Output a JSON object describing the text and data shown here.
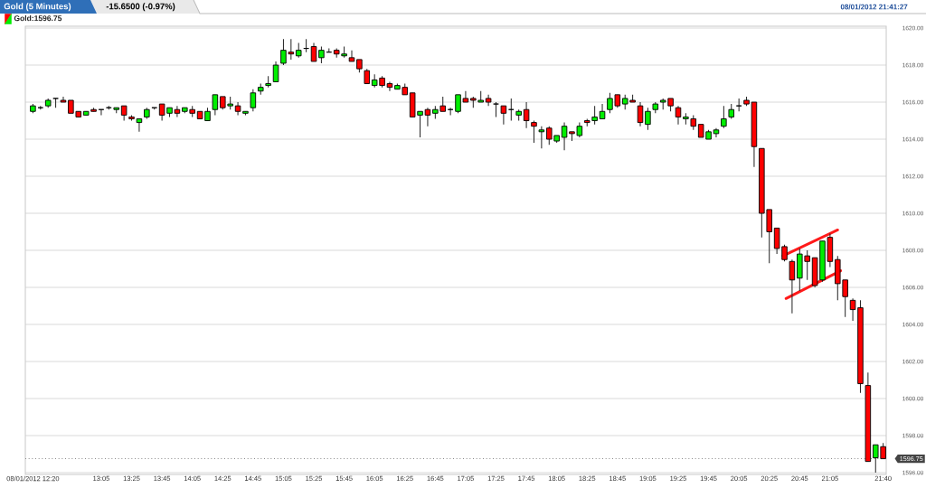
{
  "chart_data": {
    "type": "candlestick",
    "title": "Gold (5 Minutes)",
    "subtitle": "-15.6500 (-0.97%)",
    "annotations": [
      "08/01/2012 21:41:27"
    ],
    "x": [
      "2012-08-01T12:20",
      "2012-08-01T12:25",
      "2012-08-01T12:30",
      "2012-08-01T12:35",
      "2012-08-01T12:40",
      "2012-08-01T12:45",
      "2012-08-01T12:50",
      "2012-08-01T12:55",
      "2012-08-01T13:00",
      "2012-08-01T13:05",
      "2012-08-01T13:10",
      "2012-08-01T13:15",
      "2012-08-01T13:20",
      "2012-08-01T13:25",
      "2012-08-01T13:30",
      "2012-08-01T13:35",
      "2012-08-01T13:40",
      "2012-08-01T13:45",
      "2012-08-01T13:50",
      "2012-08-01T13:55",
      "2012-08-01T14:00",
      "2012-08-01T14:05",
      "2012-08-01T14:10",
      "2012-08-01T14:15",
      "2012-08-01T14:20",
      "2012-08-01T14:25",
      "2012-08-01T14:30",
      "2012-08-01T14:35",
      "2012-08-01T14:40",
      "2012-08-01T14:45",
      "2012-08-01T14:50",
      "2012-08-01T14:55",
      "2012-08-01T15:00",
      "2012-08-01T15:05",
      "2012-08-01T15:10",
      "2012-08-01T15:15",
      "2012-08-01T15:20",
      "2012-08-01T15:25",
      "2012-08-01T15:30",
      "2012-08-01T15:35",
      "2012-08-01T15:40",
      "2012-08-01T15:45",
      "2012-08-01T15:50",
      "2012-08-01T15:55",
      "2012-08-01T16:00",
      "2012-08-01T16:05",
      "2012-08-01T16:10",
      "2012-08-01T16:15",
      "2012-08-01T16:20",
      "2012-08-01T16:25",
      "2012-08-01T16:30",
      "2012-08-01T16:35",
      "2012-08-01T16:40",
      "2012-08-01T16:45",
      "2012-08-01T16:50",
      "2012-08-01T16:55",
      "2012-08-01T17:00",
      "2012-08-01T17:05",
      "2012-08-01T17:10",
      "2012-08-01T17:15",
      "2012-08-01T17:20",
      "2012-08-01T17:25",
      "2012-08-01T17:30",
      "2012-08-01T17:35",
      "2012-08-01T17:40",
      "2012-08-01T17:45",
      "2012-08-01T17:50",
      "2012-08-01T17:55",
      "2012-08-01T18:00",
      "2012-08-01T18:05",
      "2012-08-01T18:10",
      "2012-08-01T18:15",
      "2012-08-01T18:20",
      "2012-08-01T18:25",
      "2012-08-01T18:30",
      "2012-08-01T18:35",
      "2012-08-01T18:40",
      "2012-08-01T18:45",
      "2012-08-01T18:50",
      "2012-08-01T18:55",
      "2012-08-01T19:00",
      "2012-08-01T19:05",
      "2012-08-01T19:10",
      "2012-08-01T19:15",
      "2012-08-01T19:20",
      "2012-08-01T19:25",
      "2012-08-01T19:30",
      "2012-08-01T19:35",
      "2012-08-01T19:40",
      "2012-08-01T19:45",
      "2012-08-01T19:50",
      "2012-08-01T19:55",
      "2012-08-01T20:00",
      "2012-08-01T20:05",
      "2012-08-01T20:10",
      "2012-08-01T20:15",
      "2012-08-01T20:20",
      "2012-08-01T20:25",
      "2012-08-01T20:30",
      "2012-08-01T20:35",
      "2012-08-01T20:40",
      "2012-08-01T20:45",
      "2012-08-01T20:50",
      "2012-08-01T20:55",
      "2012-08-01T21:00",
      "2012-08-01T21:05",
      "2012-08-01T21:10",
      "2012-08-01T21:15",
      "2012-08-01T21:20",
      "2012-08-01T21:25",
      "2012-08-01T21:30",
      "2012-08-01T21:35",
      "2012-08-01T21:40"
    ],
    "series": [
      {
        "name": "Gold:1596.75",
        "ohlc": [
          [
            1615.5,
            1615.9,
            1615.4,
            1615.8
          ],
          [
            1615.7,
            1615.8,
            1615.6,
            1615.7
          ],
          [
            1615.8,
            1616.2,
            1615.7,
            1616.1
          ],
          [
            1616.2,
            1616.2,
            1615.7,
            1616.2
          ],
          [
            1616.1,
            1616.3,
            1616.0,
            1616.0
          ],
          [
            1616.1,
            1616.1,
            1615.4,
            1615.4
          ],
          [
            1615.5,
            1615.5,
            1615.2,
            1615.2
          ],
          [
            1615.3,
            1615.5,
            1615.3,
            1615.5
          ],
          [
            1615.6,
            1615.7,
            1615.5,
            1615.5
          ],
          [
            1615.6,
            1615.6,
            1615.3,
            1615.6
          ],
          [
            1615.7,
            1615.8,
            1615.6,
            1615.7
          ],
          [
            1615.6,
            1615.7,
            1615.4,
            1615.7
          ],
          [
            1615.8,
            1615.8,
            1615.0,
            1615.3
          ],
          [
            1615.2,
            1615.3,
            1615.0,
            1615.1
          ],
          [
            1614.9,
            1615.1,
            1614.4,
            1615.1
          ],
          [
            1615.2,
            1615.7,
            1615.1,
            1615.6
          ],
          [
            1615.7,
            1615.7,
            1615.6,
            1615.7
          ],
          [
            1615.9,
            1615.9,
            1615.0,
            1615.3
          ],
          [
            1615.4,
            1615.7,
            1615.2,
            1615.7
          ],
          [
            1615.6,
            1615.8,
            1615.2,
            1615.4
          ],
          [
            1615.5,
            1615.7,
            1615.4,
            1615.7
          ],
          [
            1615.6,
            1615.8,
            1615.2,
            1615.4
          ],
          [
            1615.5,
            1615.5,
            1615.1,
            1615.1
          ],
          [
            1615.0,
            1615.7,
            1615.0,
            1615.5
          ],
          [
            1615.6,
            1616.4,
            1615.3,
            1616.4
          ],
          [
            1616.3,
            1616.3,
            1615.6,
            1615.7
          ],
          [
            1615.8,
            1616.3,
            1615.6,
            1615.9
          ],
          [
            1615.8,
            1616.0,
            1615.3,
            1615.5
          ],
          [
            1615.4,
            1615.5,
            1615.3,
            1615.5
          ],
          [
            1615.7,
            1616.7,
            1615.5,
            1616.5
          ],
          [
            1616.6,
            1617.0,
            1616.4,
            1616.8
          ],
          [
            1616.9,
            1617.4,
            1616.8,
            1617.0
          ],
          [
            1617.1,
            1618.2,
            1617.1,
            1618.0
          ],
          [
            1618.1,
            1619.4,
            1618.0,
            1618.8
          ],
          [
            1618.7,
            1619.4,
            1618.3,
            1618.6
          ],
          [
            1618.5,
            1619.2,
            1618.4,
            1618.8
          ],
          [
            1618.9,
            1619.4,
            1618.7,
            1618.9
          ],
          [
            1619.0,
            1619.2,
            1618.2,
            1618.2
          ],
          [
            1618.4,
            1619.0,
            1618.1,
            1618.8
          ],
          [
            1618.7,
            1618.9,
            1618.7,
            1618.7
          ],
          [
            1618.8,
            1618.9,
            1618.4,
            1618.6
          ],
          [
            1618.5,
            1619.0,
            1618.4,
            1618.6
          ],
          [
            1618.4,
            1618.8,
            1618.2,
            1618.2
          ],
          [
            1618.3,
            1618.3,
            1617.6,
            1617.8
          ],
          [
            1617.7,
            1617.8,
            1617.0,
            1617.0
          ],
          [
            1616.9,
            1617.5,
            1616.8,
            1617.2
          ],
          [
            1617.3,
            1617.4,
            1616.8,
            1616.9
          ],
          [
            1617.0,
            1617.1,
            1616.6,
            1616.8
          ],
          [
            1616.7,
            1617.0,
            1616.7,
            1616.9
          ],
          [
            1616.8,
            1617.0,
            1616.4,
            1616.4
          ],
          [
            1616.5,
            1616.5,
            1615.2,
            1615.2
          ],
          [
            1615.3,
            1615.5,
            1614.1,
            1615.5
          ],
          [
            1615.6,
            1615.7,
            1614.7,
            1615.3
          ],
          [
            1615.4,
            1615.8,
            1615.1,
            1615.6
          ],
          [
            1615.8,
            1616.3,
            1615.5,
            1615.5
          ],
          [
            1615.6,
            1615.7,
            1615.3,
            1615.6
          ],
          [
            1615.5,
            1616.4,
            1615.4,
            1616.4
          ],
          [
            1616.2,
            1616.6,
            1616.0,
            1616.0
          ],
          [
            1616.2,
            1616.3,
            1615.7,
            1616.1
          ],
          [
            1616.0,
            1616.6,
            1616.0,
            1616.1
          ],
          [
            1616.2,
            1616.4,
            1615.8,
            1616.0
          ],
          [
            1615.9,
            1616.0,
            1615.2,
            1615.9
          ],
          [
            1615.8,
            1615.8,
            1614.8,
            1615.4
          ],
          [
            1615.6,
            1616.2,
            1615.0,
            1615.6
          ],
          [
            1615.3,
            1615.6,
            1615.0,
            1615.5
          ],
          [
            1615.6,
            1616.0,
            1614.6,
            1615.0
          ],
          [
            1614.9,
            1615.0,
            1613.8,
            1614.7
          ],
          [
            1614.4,
            1614.7,
            1613.5,
            1614.5
          ],
          [
            1614.6,
            1614.7,
            1613.7,
            1614.0
          ],
          [
            1613.9,
            1614.2,
            1613.8,
            1614.2
          ],
          [
            1614.1,
            1614.9,
            1613.4,
            1614.7
          ],
          [
            1614.4,
            1614.4,
            1613.9,
            1614.3
          ],
          [
            1614.2,
            1614.9,
            1614.1,
            1614.7
          ],
          [
            1615.0,
            1615.1,
            1614.7,
            1614.9
          ],
          [
            1615.0,
            1615.8,
            1614.8,
            1615.2
          ],
          [
            1615.1,
            1615.9,
            1615.1,
            1615.5
          ],
          [
            1615.6,
            1616.5,
            1615.4,
            1616.2
          ],
          [
            1616.4,
            1616.4,
            1615.7,
            1615.8
          ],
          [
            1615.9,
            1616.4,
            1615.6,
            1616.2
          ],
          [
            1616.1,
            1616.4,
            1616.0,
            1616.0
          ],
          [
            1615.8,
            1616.0,
            1614.7,
            1614.9
          ],
          [
            1614.8,
            1615.7,
            1614.5,
            1615.5
          ],
          [
            1615.6,
            1616.0,
            1615.4,
            1615.9
          ],
          [
            1616.0,
            1616.2,
            1615.6,
            1616.1
          ],
          [
            1616.2,
            1616.2,
            1615.5,
            1615.8
          ],
          [
            1615.7,
            1615.8,
            1614.8,
            1615.2
          ],
          [
            1615.1,
            1615.4,
            1614.8,
            1615.2
          ],
          [
            1615.1,
            1615.3,
            1614.5,
            1614.7
          ],
          [
            1614.8,
            1614.8,
            1614.1,
            1614.1
          ],
          [
            1614.0,
            1614.5,
            1614.0,
            1614.4
          ],
          [
            1614.3,
            1614.6,
            1614.1,
            1614.5
          ],
          [
            1614.7,
            1615.8,
            1614.6,
            1615.1
          ],
          [
            1615.2,
            1615.9,
            1615.1,
            1615.6
          ],
          [
            1615.8,
            1616.2,
            1615.5,
            1615.8
          ],
          [
            1616.1,
            1616.3,
            1615.8,
            1615.9
          ],
          [
            1616.0,
            1616.0,
            1612.5,
            1613.6
          ],
          [
            1613.5,
            1613.5,
            1608.7,
            1610.0
          ],
          [
            1610.2,
            1610.2,
            1607.3,
            1609.0
          ],
          [
            1609.2,
            1609.2,
            1607.8,
            1608.1
          ],
          [
            1608.2,
            1608.3,
            1607.4,
            1607.5
          ],
          [
            1607.4,
            1607.5,
            1604.6,
            1606.4
          ],
          [
            1606.5,
            1608.1,
            1605.8,
            1607.8
          ],
          [
            1607.7,
            1608.0,
            1606.4,
            1607.4
          ],
          [
            1607.6,
            1607.6,
            1606.0,
            1606.1
          ],
          [
            1606.4,
            1608.5,
            1606.3,
            1608.5
          ],
          [
            1608.7,
            1608.9,
            1607.1,
            1607.4
          ],
          [
            1607.5,
            1607.7,
            1605.3,
            1606.2
          ],
          [
            1606.4,
            1606.4,
            1604.4,
            1605.5
          ],
          [
            1605.3,
            1605.4,
            1604.2,
            1604.8
          ],
          [
            1604.9,
            1605.3,
            1600.3,
            1600.8
          ],
          [
            1600.7,
            1601.4,
            1596.6,
            1596.6
          ],
          [
            1596.8,
            1597.5,
            1596.0,
            1597.5
          ],
          [
            1597.4,
            1597.6,
            1596.75,
            1596.75
          ]
        ],
        "colors": [
          "#00ee00",
          "#000000",
          "#00ee00",
          "#000000",
          "#ff0000",
          "#ff0000",
          "#ff0000",
          "#00ee00",
          "#ff0000",
          "#000000",
          "#000000",
          "#00ee00",
          "#ff0000",
          "#ff0000",
          "#00ee00",
          "#00ee00",
          "#000000",
          "#ff0000",
          "#00ee00",
          "#ff0000",
          "#00ee00",
          "#ff0000",
          "#ff0000",
          "#00ee00",
          "#00ee00",
          "#ff0000",
          "#00ee00",
          "#ff0000",
          "#00ee00",
          "#00ee00",
          "#00ee00",
          "#00ee00",
          "#00ee00",
          "#00ee00",
          "#ff0000",
          "#00ee00",
          "#000000",
          "#ff0000",
          "#00ee00",
          "#000000",
          "#ff0000",
          "#00ee00",
          "#ff0000",
          "#ff0000",
          "#ff0000",
          "#00ee00",
          "#ff0000",
          "#ff0000",
          "#00ee00",
          "#ff0000",
          "#ff0000",
          "#00ee00",
          "#ff0000",
          "#00ee00",
          "#ff0000",
          "#000000",
          "#00ee00",
          "#ff0000",
          "#ff0000",
          "#00ee00",
          "#ff0000",
          "#000000",
          "#ff0000",
          "#000000",
          "#00ee00",
          "#ff0000",
          "#ff0000",
          "#00ee00",
          "#ff0000",
          "#00ee00",
          "#00ee00",
          "#ff0000",
          "#00ee00",
          "#ff0000",
          "#00ee00",
          "#00ee00",
          "#00ee00",
          "#ff0000",
          "#00ee00",
          "#ff0000",
          "#ff0000",
          "#00ee00",
          "#00ee00",
          "#00ee00",
          "#ff0000",
          "#ff0000",
          "#00ee00",
          "#ff0000",
          "#ff0000",
          "#00ee00",
          "#00ee00",
          "#00ee00",
          "#00ee00",
          "#000000",
          "#ff0000",
          "#ff0000",
          "#ff0000",
          "#ff0000",
          "#ff0000",
          "#ff0000",
          "#ff0000",
          "#00ee00",
          "#ff0000",
          "#ff0000",
          "#00ee00",
          "#ff0000",
          "#ff0000",
          "#ff0000",
          "#ff0000",
          "#ff0000",
          "#ff0000",
          "#00ee00",
          "#ff0000"
        ]
      },
      {
        "type": "line",
        "x": [
          "2012-08-01T20:34",
          "2012-08-01T21:10"
        ],
        "values": [
          1607.7,
          1609.1
        ],
        "color": "#ff1a1a"
      },
      {
        "type": "line",
        "x": [
          "2012-08-01T20:36",
          "2012-08-01T21:12"
        ],
        "values": [
          1605.4,
          1606.9
        ],
        "color": "#ff1a1a"
      }
    ],
    "xlim": [
      "2012-08-01T12:15",
      "2012-08-01T21:42"
    ],
    "xticks": [
      {
        "value": "2012-08-01T12:20",
        "label": "08/01/2012 12:20"
      },
      {
        "value": "2012-08-01T13:05",
        "label": "13:05"
      },
      {
        "value": "2012-08-01T13:25",
        "label": "13:25"
      },
      {
        "value": "2012-08-01T13:45",
        "label": "13:45"
      },
      {
        "value": "2012-08-01T14:05",
        "label": "14:05"
      },
      {
        "value": "2012-08-01T14:25",
        "label": "14:25"
      },
      {
        "value": "2012-08-01T14:45",
        "label": "14:45"
      },
      {
        "value": "2012-08-01T15:05",
        "label": "15:05"
      },
      {
        "value": "2012-08-01T15:25",
        "label": "15:25"
      },
      {
        "value": "2012-08-01T15:45",
        "label": "15:45"
      },
      {
        "value": "2012-08-01T16:05",
        "label": "16:05"
      },
      {
        "value": "2012-08-01T16:25",
        "label": "16:25"
      },
      {
        "value": "2012-08-01T16:45",
        "label": "16:45"
      },
      {
        "value": "2012-08-01T17:05",
        "label": "17:05"
      },
      {
        "value": "2012-08-01T17:25",
        "label": "17:25"
      },
      {
        "value": "2012-08-01T17:45",
        "label": "17:45"
      },
      {
        "value": "2012-08-01T18:05",
        "label": "18:05"
      },
      {
        "value": "2012-08-01T18:25",
        "label": "18:25"
      },
      {
        "value": "2012-08-01T18:45",
        "label": "18:45"
      },
      {
        "value": "2012-08-01T19:05",
        "label": "19:05"
      },
      {
        "value": "2012-08-01T19:25",
        "label": "19:25"
      },
      {
        "value": "2012-08-01T19:45",
        "label": "19:45"
      },
      {
        "value": "2012-08-01T20:05",
        "label": "20:05"
      },
      {
        "value": "2012-08-01T20:25",
        "label": "20:25"
      },
      {
        "value": "2012-08-01T20:45",
        "label": "20:45"
      },
      {
        "value": "2012-08-01T21:05",
        "label": "21:05"
      },
      {
        "value": "2012-08-01T21:40",
        "label": "21:40"
      }
    ],
    "ylim": [
      1595.9,
      1620.1
    ],
    "yticks": [
      {
        "value": 1596,
        "label": "1596.00"
      },
      {
        "value": 1598,
        "label": "1598.00"
      },
      {
        "value": 1600,
        "label": "1600.00"
      },
      {
        "value": 1602,
        "label": "1602.00"
      },
      {
        "value": 1604,
        "label": "1604.00"
      },
      {
        "value": 1606,
        "label": "1606.00"
      },
      {
        "value": 1608,
        "label": "1608.00"
      },
      {
        "value": 1610,
        "label": "1610.00"
      },
      {
        "value": 1612,
        "label": "1612.00"
      },
      {
        "value": 1614,
        "label": "1614.00"
      },
      {
        "value": 1616,
        "label": "1616.00"
      },
      {
        "value": 1618,
        "label": "1618.00"
      },
      {
        "value": 1620,
        "label": "1620.00"
      }
    ],
    "ref_lines": [
      {
        "axis": "y",
        "value": 1596.75,
        "label": "1596.75",
        "color": "#8a8a8a",
        "line_style": "dotted"
      }
    ],
    "grid": "y",
    "legend": "top left"
  }
}
